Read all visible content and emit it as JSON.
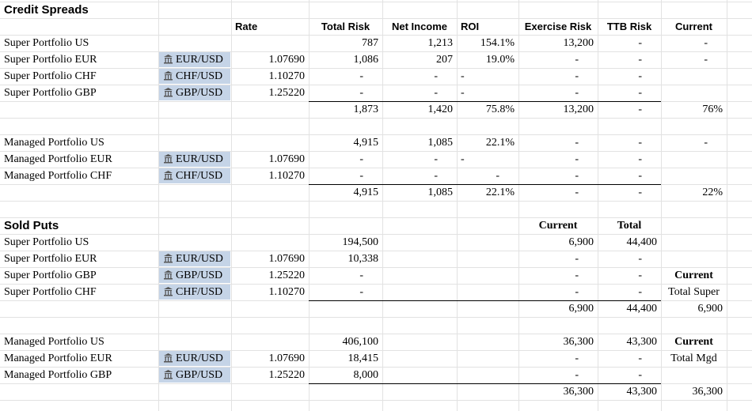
{
  "rows": [
    {
      "kind": "title",
      "cells": {
        "A": "Credit Spreads"
      }
    },
    {
      "kind": "header",
      "cells": {
        "C": "Rate",
        "D": "Total Risk",
        "E": "Net Income",
        "F": "ROI",
        "G": "Exercise Risk",
        "H": "TTB Risk",
        "I": "Current"
      }
    },
    {
      "cells": {
        "A": "Super Portfolio US",
        "D": "787",
        "E": "1,213",
        "F": "154.1%",
        "G": "13,200",
        "H": "-",
        "I": "-"
      }
    },
    {
      "cells": {
        "A": "Super Portfolio EUR",
        "B": "EUR/USD",
        "C": "1.07690",
        "D": "1,086",
        "E": "207",
        "F": "19.0%",
        "G": "-",
        "H": "-",
        "I": "-"
      }
    },
    {
      "cells": {
        "A": "Super Portfolio CHF",
        "B": "CHF/USD",
        "C": "1.10270",
        "D": "-",
        "E": "-",
        "F": {
          "text": "-",
          "align": "left"
        },
        "G": "-",
        "H": "-"
      }
    },
    {
      "cells": {
        "A": "Super Portfolio GBP",
        "B": "GBP/USD",
        "C": "1.25220",
        "D": "-",
        "E": "-",
        "F": {
          "text": "-",
          "align": "left"
        },
        "G": "-",
        "H": "-"
      }
    },
    {
      "kind": "total",
      "cells": {
        "D": "1,873",
        "E": "1,420",
        "F": "75.8%",
        "G": "13,200",
        "H": "-",
        "I": "76%"
      }
    },
    {
      "cells": {}
    },
    {
      "cells": {
        "A": "Managed Portfolio US",
        "D": "4,915",
        "E": "1,085",
        "F": "22.1%",
        "G": "-",
        "H": "-",
        "I": "-"
      }
    },
    {
      "cells": {
        "A": "Managed Portfolio EUR",
        "B": "EUR/USD",
        "C": "1.07690",
        "D": "-",
        "E": "-",
        "F": {
          "text": "-",
          "align": "left"
        },
        "G": "-",
        "H": "-"
      }
    },
    {
      "cells": {
        "A": "Managed Portfolio CHF",
        "B": "CHF/USD",
        "C": "1.10270",
        "D": "-",
        "E": "-",
        "F": "-",
        "G": "-",
        "H": "-"
      }
    },
    {
      "kind": "total",
      "cells": {
        "D": "4,915",
        "E": "1,085",
        "F": "22.1%",
        "G": "-",
        "H": "-",
        "I": "22%"
      }
    },
    {
      "cells": {}
    },
    {
      "kind": "title",
      "cells": {
        "A": "Sold Puts",
        "G": {
          "text": "Current",
          "bold": true
        },
        "H": {
          "text": "Total",
          "bold": true
        }
      }
    },
    {
      "cells": {
        "A": "Super Portfolio US",
        "D": "194,500",
        "G": "6,900",
        "H": "44,400"
      }
    },
    {
      "cells": {
        "A": "Super Portfolio EUR",
        "B": "EUR/USD",
        "C": "1.07690",
        "D": "10,338",
        "G": "-",
        "H": "-"
      }
    },
    {
      "cells": {
        "A": "Super Portfolio GBP",
        "B": "GBP/USD",
        "C": "1.25220",
        "D": "-",
        "G": "-",
        "H": "-",
        "I": {
          "text": "Current",
          "bold": true
        }
      }
    },
    {
      "cells": {
        "A": "Super Portfolio CHF",
        "B": "CHF/USD",
        "C": "1.10270",
        "D": "-",
        "G": "-",
        "H": "-",
        "I": "Total Super"
      }
    },
    {
      "kind": "total",
      "cells": {
        "G": "6,900",
        "H": "44,400",
        "I": "6,900"
      }
    },
    {
      "cells": {}
    },
    {
      "cells": {
        "A": "Managed Portfolio US",
        "D": "406,100",
        "G": "36,300",
        "H": "43,300",
        "I": {
          "text": "Current",
          "bold": true
        }
      }
    },
    {
      "cells": {
        "A": "Managed Portfolio EUR",
        "B": "EUR/USD",
        "C": "1.07690",
        "D": "18,415",
        "G": "-",
        "H": "-",
        "I": "Total Mgd"
      }
    },
    {
      "cells": {
        "A": "Managed Portfolio GBP",
        "B": "GBP/USD",
        "C": "1.25220",
        "D": "8,000",
        "G": "-",
        "H": "-"
      }
    },
    {
      "kind": "total",
      "cells": {
        "G": "36,300",
        "H": "43,300",
        "I": "36,300"
      }
    }
  ]
}
